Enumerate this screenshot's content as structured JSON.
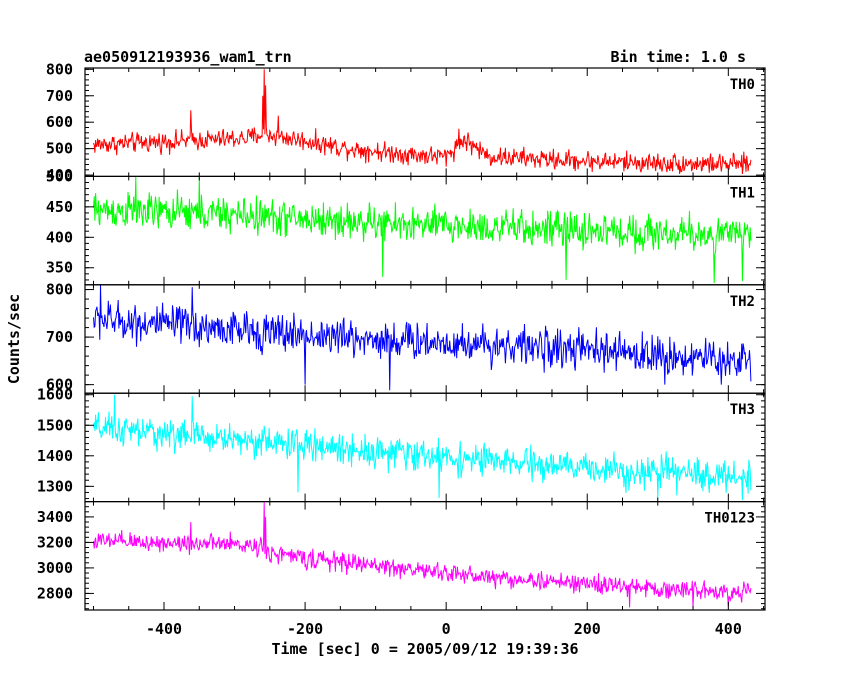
{
  "chart_data": {
    "type": "line",
    "title_left": "ae050912193936_wam1_trn",
    "title_right": "Bin time: 1.0 s",
    "xlabel": "Time [sec] 0 = 2005/09/12 19:39:36",
    "ylabel": "Counts/sec",
    "xlim": [
      -512,
      452
    ],
    "x_ticks": [
      -400,
      -200,
      0,
      200,
      400
    ],
    "x_start": -500,
    "x_end": 432,
    "panels": [
      {
        "name": "TH0",
        "color": "#ff0000",
        "ylim": [
          395,
          805
        ],
        "y_ticks": [
          400,
          500,
          600,
          700,
          800
        ],
        "baseline": [
          [
            -500,
            515
          ],
          [
            -280,
            540
          ],
          [
            -262,
            555
          ],
          [
            -200,
            530
          ],
          [
            -150,
            505
          ],
          [
            -100,
            490
          ],
          [
            -50,
            478
          ],
          [
            0,
            470
          ],
          [
            25,
            535
          ],
          [
            45,
            500
          ],
          [
            60,
            470
          ],
          [
            150,
            458
          ],
          [
            300,
            445
          ],
          [
            432,
            440
          ]
        ],
        "noise": 28,
        "spikes": [
          [
            -258,
            800
          ],
          [
            -256,
            740
          ],
          [
            -260,
            700
          ],
          [
            -362,
            645
          ],
          [
            -238,
            625
          ],
          [
            18,
            575
          ]
        ]
      },
      {
        "name": "TH1",
        "color": "#00ff00",
        "ylim": [
          322,
          500
        ],
        "y_ticks": [
          350,
          400,
          450,
          500
        ],
        "baseline": [
          [
            -500,
            445
          ],
          [
            -300,
            437
          ],
          [
            -100,
            423
          ],
          [
            100,
            415
          ],
          [
            300,
            407
          ],
          [
            432,
            403
          ]
        ],
        "noise": 22,
        "spikes": [
          [
            -440,
            500
          ],
          [
            -350,
            498
          ],
          [
            -90,
            335
          ],
          [
            170,
            330
          ],
          [
            380,
            325
          ],
          [
            420,
            328
          ]
        ]
      },
      {
        "name": "TH2",
        "color": "#0000ff",
        "ylim": [
          582,
          810
        ],
        "y_ticks": [
          600,
          700,
          800
        ],
        "baseline": [
          [
            -500,
            738
          ],
          [
            -300,
            715
          ],
          [
            -100,
            695
          ],
          [
            100,
            682
          ],
          [
            300,
            662
          ],
          [
            432,
            650
          ]
        ],
        "noise": 30,
        "spikes": [
          [
            -490,
            810
          ],
          [
            -360,
            805
          ],
          [
            -200,
            600
          ],
          [
            -80,
            588
          ],
          [
            310,
            600
          ],
          [
            390,
            600
          ]
        ]
      },
      {
        "name": "TH3",
        "color": "#00ffff",
        "ylim": [
          1250,
          1605
        ],
        "y_ticks": [
          1300,
          1400,
          1500,
          1600
        ],
        "baseline": [
          [
            -500,
            1490
          ],
          [
            -300,
            1455
          ],
          [
            -100,
            1415
          ],
          [
            100,
            1375
          ],
          [
            300,
            1345
          ],
          [
            432,
            1330
          ]
        ],
        "noise": 38,
        "spikes": [
          [
            -470,
            1600
          ],
          [
            -360,
            1595
          ],
          [
            -210,
            1280
          ],
          [
            -10,
            1262
          ],
          [
            300,
            1258
          ],
          [
            420,
            1255
          ]
        ]
      },
      {
        "name": "TH0123",
        "color": "#ff00ff",
        "ylim": [
          2670,
          3520
        ],
        "y_ticks": [
          2800,
          3000,
          3200,
          3400
        ],
        "baseline": [
          [
            -500,
            3210
          ],
          [
            -300,
            3185
          ],
          [
            -262,
            3170
          ],
          [
            -250,
            3120
          ],
          [
            -200,
            3075
          ],
          [
            -100,
            3020
          ],
          [
            0,
            2960
          ],
          [
            100,
            2910
          ],
          [
            200,
            2875
          ],
          [
            300,
            2835
          ],
          [
            432,
            2815
          ]
        ],
        "noise": 55,
        "spikes": [
          [
            -258,
            3520
          ],
          [
            -256,
            3400
          ],
          [
            -362,
            3360
          ],
          [
            260,
            2690
          ],
          [
            350,
            2685
          ],
          [
            400,
            2700
          ]
        ]
      }
    ]
  }
}
